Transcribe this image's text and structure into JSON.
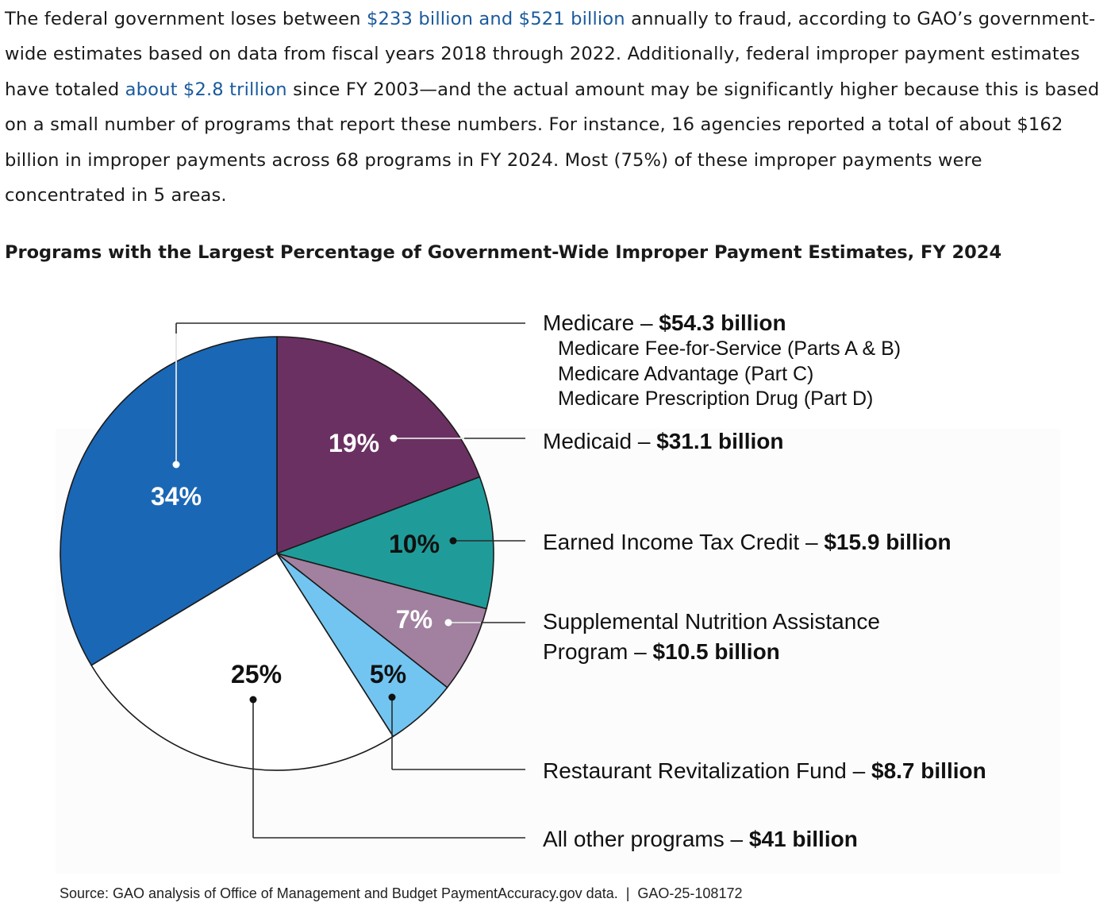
{
  "intro": {
    "before_link1": "The federal government loses between ",
    "link1": "$233 billion and $521 billion",
    "after_link1": " annually to fraud, according to GAO’s government-wide estimates based on data from fiscal years 2018 through 2022. Additionally, federal improper payment estimates have totaled ",
    "link2": "about $2.8 trillion",
    "after_link2": " since FY 2003—and the actual amount may be significantly higher because this is based on a small number of programs that report these numbers. For instance, 16 agencies reported a total of about $162 billion in improper payments across 68 programs in FY 2024. Most (75%) of these improper payments were concentrated in 5 areas."
  },
  "colors": {
    "link": "#1a5a9c",
    "medicare": "#1a67b5",
    "medicaid": "#6b3062",
    "eitc": "#1f9c9a",
    "snap": "#a1819f",
    "rrf": "#72c5f1",
    "other": "#ffffff"
  },
  "chart_data": {
    "type": "pie",
    "title": "Programs with the Largest Percentage of Government-Wide Improper Payment Estimates, FY 2024",
    "unit": "billion dollars",
    "slices": [
      {
        "key": "medicaid",
        "percent_label": "19%",
        "percent": 19,
        "name": "Medicaid",
        "separator": " – ",
        "amount": "$31.1 billion",
        "value": 31.1,
        "color_key": "medicaid",
        "label_color": "#ffffff"
      },
      {
        "key": "eitc",
        "percent_label": "10%",
        "percent": 10,
        "name": "Earned Income Tax Credit",
        "separator": " – ",
        "amount": "$15.9 billion",
        "value": 15.9,
        "color_key": "eitc",
        "label_color": "#111111"
      },
      {
        "key": "snap",
        "percent_label": "7%",
        "percent": 7,
        "name_lines": [
          "Supplemental Nutrition Assistance",
          "Program"
        ],
        "separator": " – ",
        "amount": "$10.5 billion",
        "value": 10.5,
        "color_key": "snap",
        "label_color": "#ffffff"
      },
      {
        "key": "rrf",
        "percent_label": "5%",
        "percent": 5,
        "name": "Restaurant Revitalization Fund",
        "separator": " – ",
        "amount": "$8.7 billion",
        "value": 8.7,
        "color_key": "rrf",
        "label_color": "#111111"
      },
      {
        "key": "other",
        "percent_label": "25%",
        "percent": 25,
        "name": "All other programs",
        "separator": " – ",
        "amount": "$41 billion",
        "value": 41,
        "color_key": "other",
        "label_color": "#111111"
      },
      {
        "key": "medicare",
        "percent_label": "34%",
        "percent": 34,
        "name": "Medicare",
        "separator": " – ",
        "amount": "$54.3 billion",
        "value": 54.3,
        "color_key": "medicare",
        "label_color": "#ffffff",
        "sublabels": [
          "Medicare Fee-for-Service (Parts A & B)",
          "Medicare Advantage (Part C)",
          "Medicare Prescription Drug (Part D)"
        ]
      }
    ]
  },
  "source": "Source: GAO analysis of Office of Management and Budget PaymentAccuracy.gov data.  |  GAO-25-108172"
}
